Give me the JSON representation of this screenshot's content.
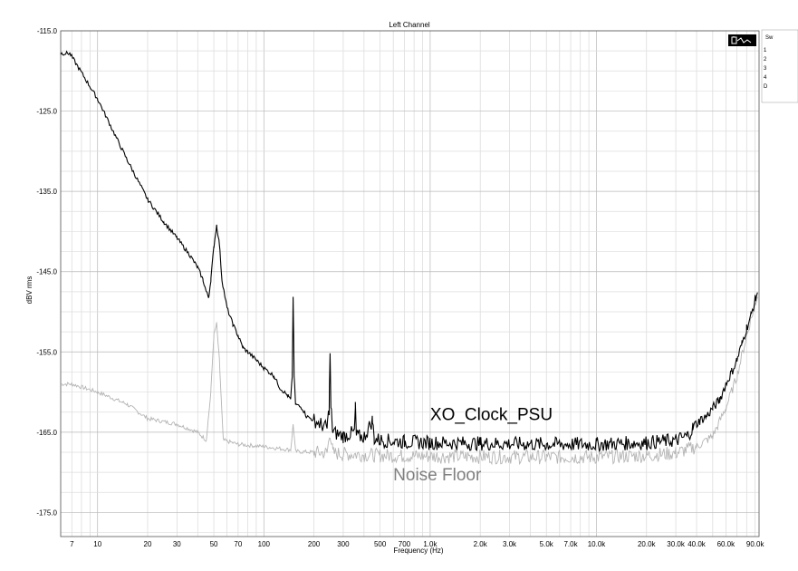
{
  "chart_data": {
    "type": "line",
    "title": "Left Channel",
    "xlabel": "Frequency (Hz)",
    "ylabel": "dBV rms",
    "x_scale": "log",
    "xlim": [
      6,
      95000
    ],
    "ylim": [
      -178,
      -115
    ],
    "grid": true,
    "y_ticks": [
      {
        "value": -115,
        "label": "-115.0"
      },
      {
        "value": -125,
        "label": "-125.0"
      },
      {
        "value": -135,
        "label": "-135.0"
      },
      {
        "value": -145,
        "label": "-145.0"
      },
      {
        "value": -155,
        "label": "-155.0"
      },
      {
        "value": -165,
        "label": "-165.0"
      },
      {
        "value": -175,
        "label": "-175.0"
      }
    ],
    "x_ticks": [
      {
        "value": 7,
        "label": "7"
      },
      {
        "value": 10,
        "label": "10"
      },
      {
        "value": 20,
        "label": "20"
      },
      {
        "value": 30,
        "label": "30"
      },
      {
        "value": 50,
        "label": "50"
      },
      {
        "value": 70,
        "label": "70"
      },
      {
        "value": 100,
        "label": "100"
      },
      {
        "value": 200,
        "label": "200"
      },
      {
        "value": 300,
        "label": "300"
      },
      {
        "value": 500,
        "label": "500"
      },
      {
        "value": 700,
        "label": "700"
      },
      {
        "value": 1000,
        "label": "1.0k"
      },
      {
        "value": 2000,
        "label": "2.0k"
      },
      {
        "value": 3000,
        "label": "3.0k"
      },
      {
        "value": 5000,
        "label": "5.0k"
      },
      {
        "value": 7000,
        "label": "7.0k"
      },
      {
        "value": 10000,
        "label": "10.0k"
      },
      {
        "value": 20000,
        "label": "20.0k"
      },
      {
        "value": 30000,
        "label": "30.0k"
      },
      {
        "value": 40000,
        "label": "40.0k"
      },
      {
        "value": 60000,
        "label": "60.0k"
      },
      {
        "value": 90000,
        "label": "90.0k"
      }
    ],
    "series": [
      {
        "name": "XO_Clock_PSU",
        "color": "#000000",
        "points": [
          [
            6,
            -117.8
          ],
          [
            6.8,
            -117.8
          ],
          [
            10,
            -123.5
          ],
          [
            15,
            -131
          ],
          [
            20,
            -136
          ],
          [
            25,
            -138.8
          ],
          [
            30,
            -140.8
          ],
          [
            36,
            -143
          ],
          [
            40,
            -144.5
          ],
          [
            43,
            -146
          ],
          [
            45,
            -147.5
          ],
          [
            46.5,
            -148.2
          ],
          [
            48,
            -146
          ],
          [
            50,
            -142
          ],
          [
            52,
            -139.2
          ],
          [
            54,
            -141.5
          ],
          [
            56,
            -146
          ],
          [
            60,
            -149.5
          ],
          [
            65,
            -151.5
          ],
          [
            70,
            -153
          ],
          [
            75,
            -154.5
          ],
          [
            80,
            -155
          ],
          [
            90,
            -156
          ],
          [
            100,
            -157
          ],
          [
            115,
            -158
          ],
          [
            125,
            -159.5
          ],
          [
            140,
            -160.5
          ],
          [
            145,
            -161
          ],
          [
            148,
            -158
          ],
          [
            150,
            -148
          ],
          [
            152,
            -158
          ],
          [
            155,
            -161.5
          ],
          [
            170,
            -162
          ],
          [
            180,
            -163
          ],
          [
            200,
            -163.5
          ],
          [
            220,
            -164
          ],
          [
            240,
            -164.5
          ],
          [
            247,
            -162
          ],
          [
            250,
            -155
          ],
          [
            253,
            -162
          ],
          [
            260,
            -165
          ],
          [
            300,
            -165.5
          ],
          [
            350,
            -165
          ],
          [
            355,
            -162
          ],
          [
            360,
            -165.5
          ],
          [
            400,
            -165.6
          ],
          [
            450,
            -163.5
          ],
          [
            460,
            -165.8
          ],
          [
            500,
            -166
          ],
          [
            700,
            -166.2
          ],
          [
            1000,
            -166.3
          ],
          [
            2000,
            -166.4
          ],
          [
            5000,
            -166.5
          ],
          [
            10000,
            -166.5
          ],
          [
            20000,
            -166.3
          ],
          [
            30000,
            -166
          ],
          [
            35000,
            -165.5
          ],
          [
            38000,
            -164.5
          ],
          [
            42000,
            -163.5
          ],
          [
            46000,
            -163
          ],
          [
            50000,
            -162
          ],
          [
            55000,
            -161
          ],
          [
            60000,
            -159
          ],
          [
            65000,
            -157.5
          ],
          [
            70000,
            -156
          ],
          [
            75000,
            -154
          ],
          [
            80000,
            -152
          ],
          [
            85000,
            -150.5
          ],
          [
            90000,
            -148.5
          ],
          [
            93000,
            -147.5
          ]
        ]
      },
      {
        "name": "Noise Floor",
        "color": "#b4b4b4",
        "points": [
          [
            6,
            -159
          ],
          [
            7,
            -159
          ],
          [
            10,
            -160
          ],
          [
            15,
            -161.5
          ],
          [
            20,
            -163.3
          ],
          [
            30,
            -164
          ],
          [
            40,
            -165
          ],
          [
            45,
            -166
          ],
          [
            48,
            -160
          ],
          [
            50,
            -153
          ],
          [
            52,
            -151.5
          ],
          [
            54,
            -156
          ],
          [
            57,
            -166
          ],
          [
            70,
            -166.5
          ],
          [
            100,
            -166.8
          ],
          [
            145,
            -167.2
          ],
          [
            150,
            -164
          ],
          [
            155,
            -167.4
          ],
          [
            200,
            -167.5
          ],
          [
            240,
            -167.6
          ],
          [
            250,
            -165
          ],
          [
            260,
            -167.6
          ],
          [
            300,
            -167.7
          ],
          [
            500,
            -167.9
          ],
          [
            1000,
            -168
          ],
          [
            5000,
            -168.1
          ],
          [
            10000,
            -168.1
          ],
          [
            20000,
            -167.9
          ],
          [
            30000,
            -167.6
          ],
          [
            40000,
            -166.8
          ],
          [
            50000,
            -165.5
          ],
          [
            60000,
            -162
          ],
          [
            70000,
            -158
          ],
          [
            80000,
            -153
          ],
          [
            90000,
            -149
          ],
          [
            93000,
            -148
          ]
        ]
      }
    ],
    "annotations": [
      {
        "text": "XO_Clock_PSU",
        "x": 1000,
        "y": -163.5,
        "color": "#000000"
      },
      {
        "text": "Noise Floor",
        "x": 600,
        "y": -171,
        "color": "#808080"
      }
    ]
  },
  "legend_panel": {
    "header": "Sw",
    "rows": [
      "1",
      "2",
      "3",
      "4",
      "D"
    ]
  }
}
